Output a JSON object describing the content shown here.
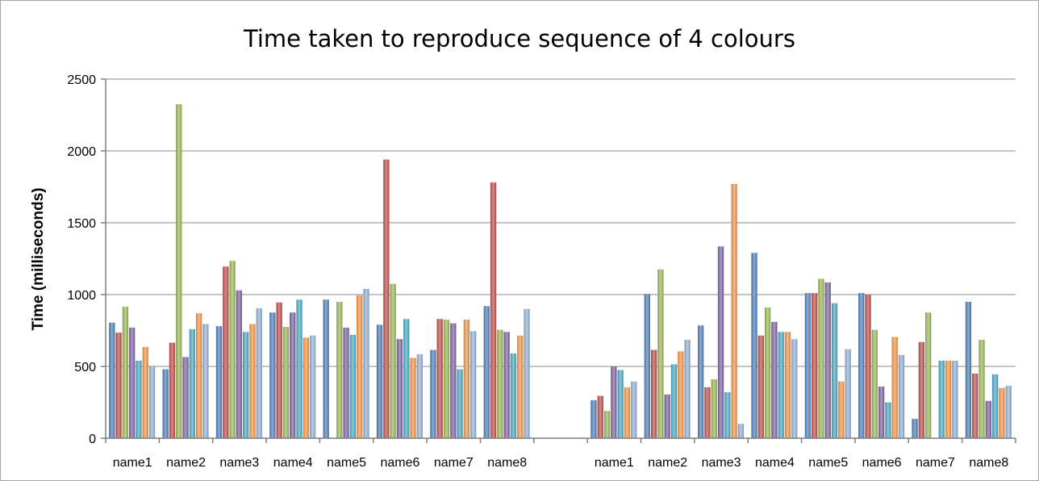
{
  "chart_data": {
    "type": "bar",
    "title": "Time taken to reproduce sequence of 4 colours",
    "ylabel": "Time  (milliseconds)",
    "xlabel": "",
    "ylim": [
      0,
      2500
    ],
    "yticks": [
      0,
      500,
      1000,
      1500,
      2000,
      2500
    ],
    "grid": true,
    "groups": [
      {
        "categories": [
          "name1",
          "name2",
          "name3",
          "name4",
          "name5",
          "name6",
          "name7",
          "name8"
        ],
        "values": [
          [
            805,
            735,
            915,
            770,
            540,
            635,
            505
          ],
          [
            480,
            665,
            2325,
            565,
            760,
            870,
            795
          ],
          [
            780,
            1195,
            1235,
            1030,
            740,
            795,
            905
          ],
          [
            875,
            945,
            775,
            875,
            965,
            700,
            715
          ],
          [
            965,
            0,
            950,
            770,
            720,
            995,
            1040
          ],
          [
            790,
            1940,
            1075,
            690,
            830,
            560,
            585
          ],
          [
            615,
            830,
            825,
            800,
            480,
            825,
            745
          ],
          [
            920,
            1780,
            755,
            740,
            590,
            715,
            900
          ]
        ]
      },
      {
        "categories": [
          "name1",
          "name2",
          "name3",
          "name4",
          "name5",
          "name6",
          "name7",
          "name8"
        ],
        "values": [
          [
            265,
            295,
            190,
            500,
            475,
            355,
            395
          ],
          [
            1005,
            615,
            1175,
            305,
            515,
            605,
            685
          ],
          [
            785,
            355,
            410,
            1335,
            320,
            1770,
            100
          ],
          [
            1290,
            715,
            910,
            810,
            740,
            740,
            690
          ],
          [
            1010,
            1010,
            1110,
            1085,
            940,
            395,
            620
          ],
          [
            1010,
            1000,
            755,
            360,
            250,
            705,
            580
          ],
          [
            135,
            670,
            875,
            0,
            540,
            540,
            540
          ],
          [
            950,
            450,
            685,
            260,
            445,
            350,
            365
          ]
        ]
      }
    ],
    "colors": {
      "bar_palette": [
        "#4f81bd",
        "#c0504d",
        "#9bbb59",
        "#8064a2",
        "#4bacc6",
        "#f79646",
        "#95b3d7"
      ],
      "axis": "#7f7f7f",
      "grid": "#8c8c8c",
      "border": "#a6a6a6"
    }
  }
}
